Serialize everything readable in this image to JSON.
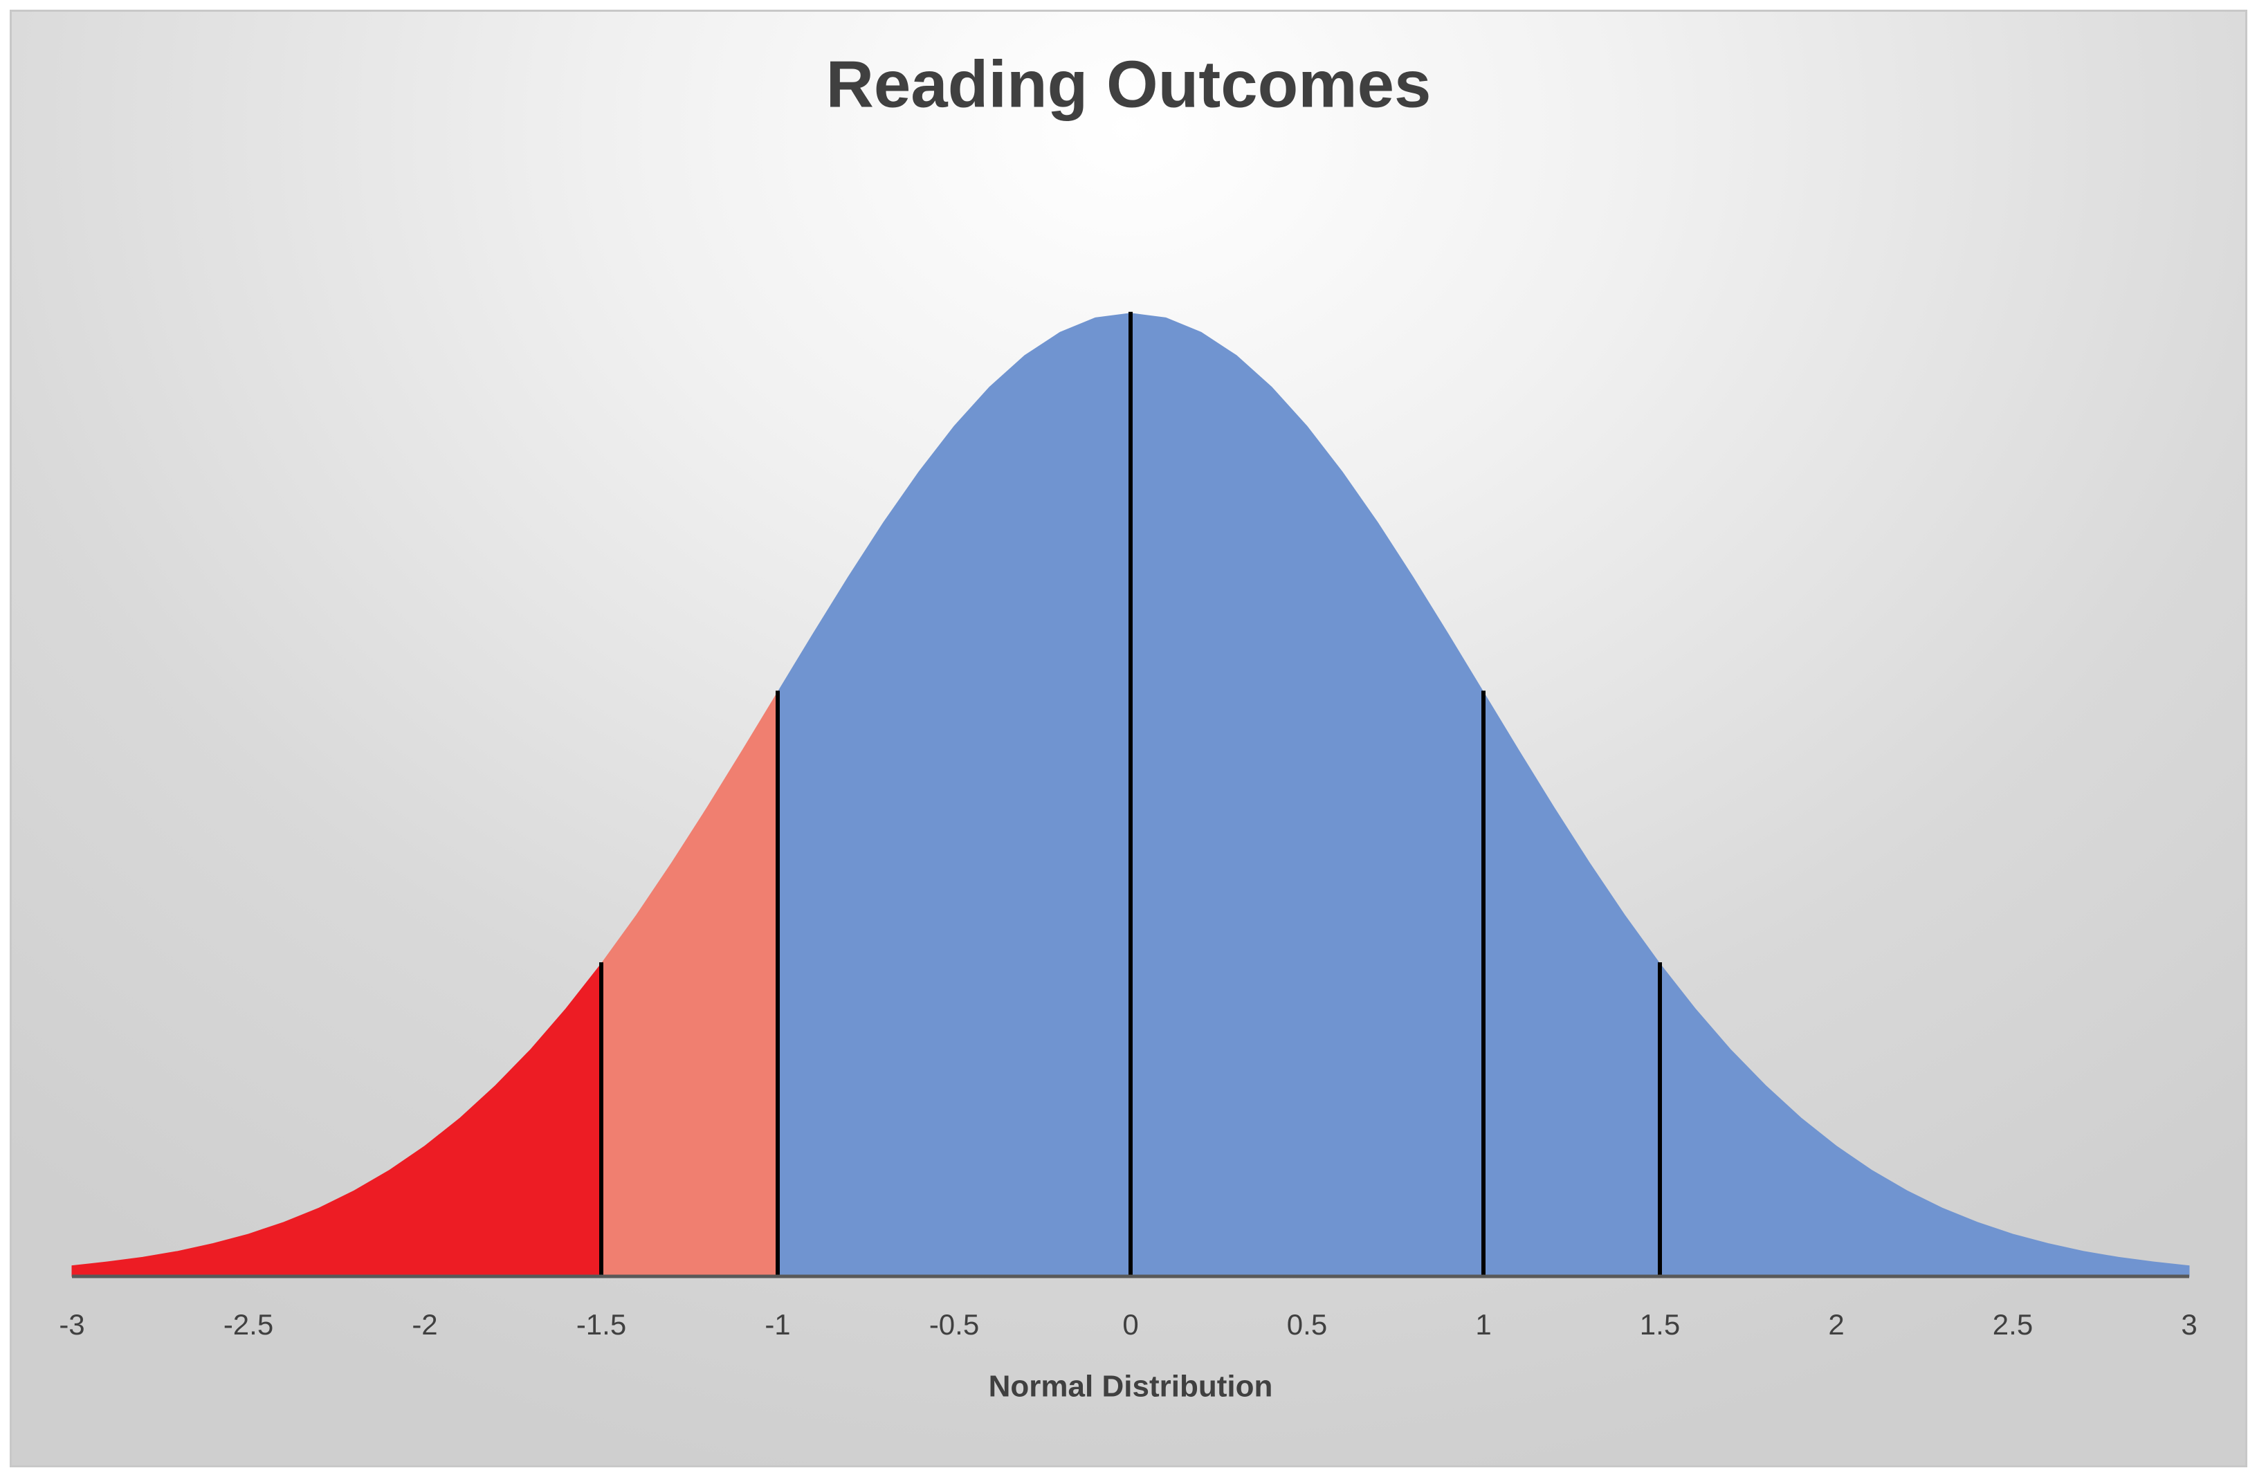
{
  "chart_data": {
    "type": "area",
    "title": "Reading Outcomes",
    "x_label": "Normal Distribution",
    "series": [
      {
        "color": "#ed1c24",
        "x": [
          -3,
          -2.9,
          -2.8,
          -2.7,
          -2.6,
          -2.5,
          -2.4,
          -2.3,
          -2.2,
          -2.1,
          -2,
          -1.9,
          -1.8,
          -1.7,
          -1.6,
          -1.5
        ],
        "values": [
          0.0044,
          0.006,
          0.0079,
          0.0104,
          0.0136,
          0.0175,
          0.0224,
          0.0283,
          0.0355,
          0.044,
          0.054,
          0.0656,
          0.079,
          0.094,
          0.1109,
          0.1295
        ]
      },
      {
        "color": "#f07f70",
        "x": [
          -1.5,
          -1.4,
          -1.3,
          -1.2,
          -1.1,
          -1
        ],
        "values": [
          0.1295,
          0.1497,
          0.1714,
          0.1942,
          0.2179,
          0.242
        ]
      },
      {
        "color": "#7094d0",
        "x": [
          -1,
          -0.9,
          -0.8,
          -0.7,
          -0.6,
          -0.5,
          -0.4,
          -0.3,
          -0.2,
          -0.1,
          0,
          0.1,
          0.2,
          0.3,
          0.4,
          0.5,
          0.6,
          0.7,
          0.8,
          0.9,
          1,
          1.1,
          1.2,
          1.3,
          1.4,
          1.5,
          1.6,
          1.7,
          1.8,
          1.9,
          2,
          2.1,
          2.2,
          2.3,
          2.4,
          2.5,
          2.6,
          2.7,
          2.8,
          2.9,
          3
        ],
        "values": [
          0.242,
          0.2661,
          0.2897,
          0.3123,
          0.3332,
          0.3521,
          0.3683,
          0.3814,
          0.391,
          0.397,
          0.3989,
          0.397,
          0.391,
          0.3814,
          0.3683,
          0.3521,
          0.3332,
          0.3123,
          0.2897,
          0.2661,
          0.242,
          0.2179,
          0.1942,
          0.1714,
          0.1497,
          0.1295,
          0.1109,
          0.094,
          0.079,
          0.0656,
          0.054,
          0.044,
          0.0355,
          0.0283,
          0.0224,
          0.0175,
          0.0136,
          0.0104,
          0.0079,
          0.006,
          0.0044
        ]
      }
    ],
    "vlines": [
      -1.5,
      -1,
      0,
      1,
      1.5
    ],
    "vline_color": "#000000",
    "xlim": [
      -3,
      3
    ],
    "xticks": [
      -3,
      -2.5,
      -2,
      -1.5,
      -1,
      -0.5,
      0,
      0.5,
      1,
      1.5,
      2,
      2.5,
      3
    ],
    "ylim": [
      0,
      0.41
    ]
  }
}
